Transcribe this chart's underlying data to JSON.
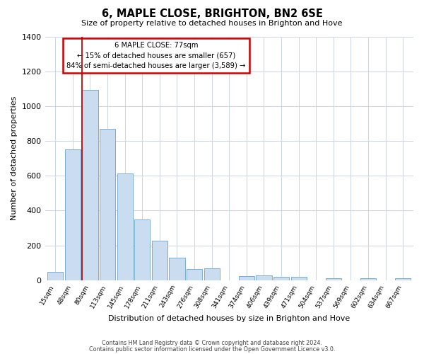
{
  "title": "6, MAPLE CLOSE, BRIGHTON, BN2 6SE",
  "subtitle": "Size of property relative to detached houses in Brighton and Hove",
  "xlabel": "Distribution of detached houses by size in Brighton and Hove",
  "ylabel": "Number of detached properties",
  "bar_labels": [
    "15sqm",
    "48sqm",
    "80sqm",
    "113sqm",
    "145sqm",
    "178sqm",
    "211sqm",
    "243sqm",
    "276sqm",
    "308sqm",
    "341sqm",
    "374sqm",
    "406sqm",
    "439sqm",
    "471sqm",
    "504sqm",
    "537sqm",
    "569sqm",
    "602sqm",
    "634sqm",
    "667sqm"
  ],
  "bar_values": [
    50,
    750,
    1095,
    870,
    615,
    348,
    228,
    130,
    65,
    70,
    0,
    22,
    28,
    20,
    18,
    0,
    10,
    0,
    12,
    0,
    12
  ],
  "bar_color": "#c9dcf0",
  "bar_edge_color": "#7aadd4",
  "ylim": [
    0,
    1400
  ],
  "yticks": [
    0,
    200,
    400,
    600,
    800,
    1000,
    1200,
    1400
  ],
  "vline_color": "#cc0000",
  "annotation_title": "6 MAPLE CLOSE: 77sqm",
  "annotation_line1": "← 15% of detached houses are smaller (657)",
  "annotation_line2": "84% of semi-detached houses are larger (3,589) →",
  "annotation_box_edge_color": "#cc0000",
  "footer_line1": "Contains HM Land Registry data © Crown copyright and database right 2024.",
  "footer_line2": "Contains public sector information licensed under the Open Government Licence v3.0.",
  "background_color": "#ffffff",
  "grid_color": "#ccd5e5"
}
